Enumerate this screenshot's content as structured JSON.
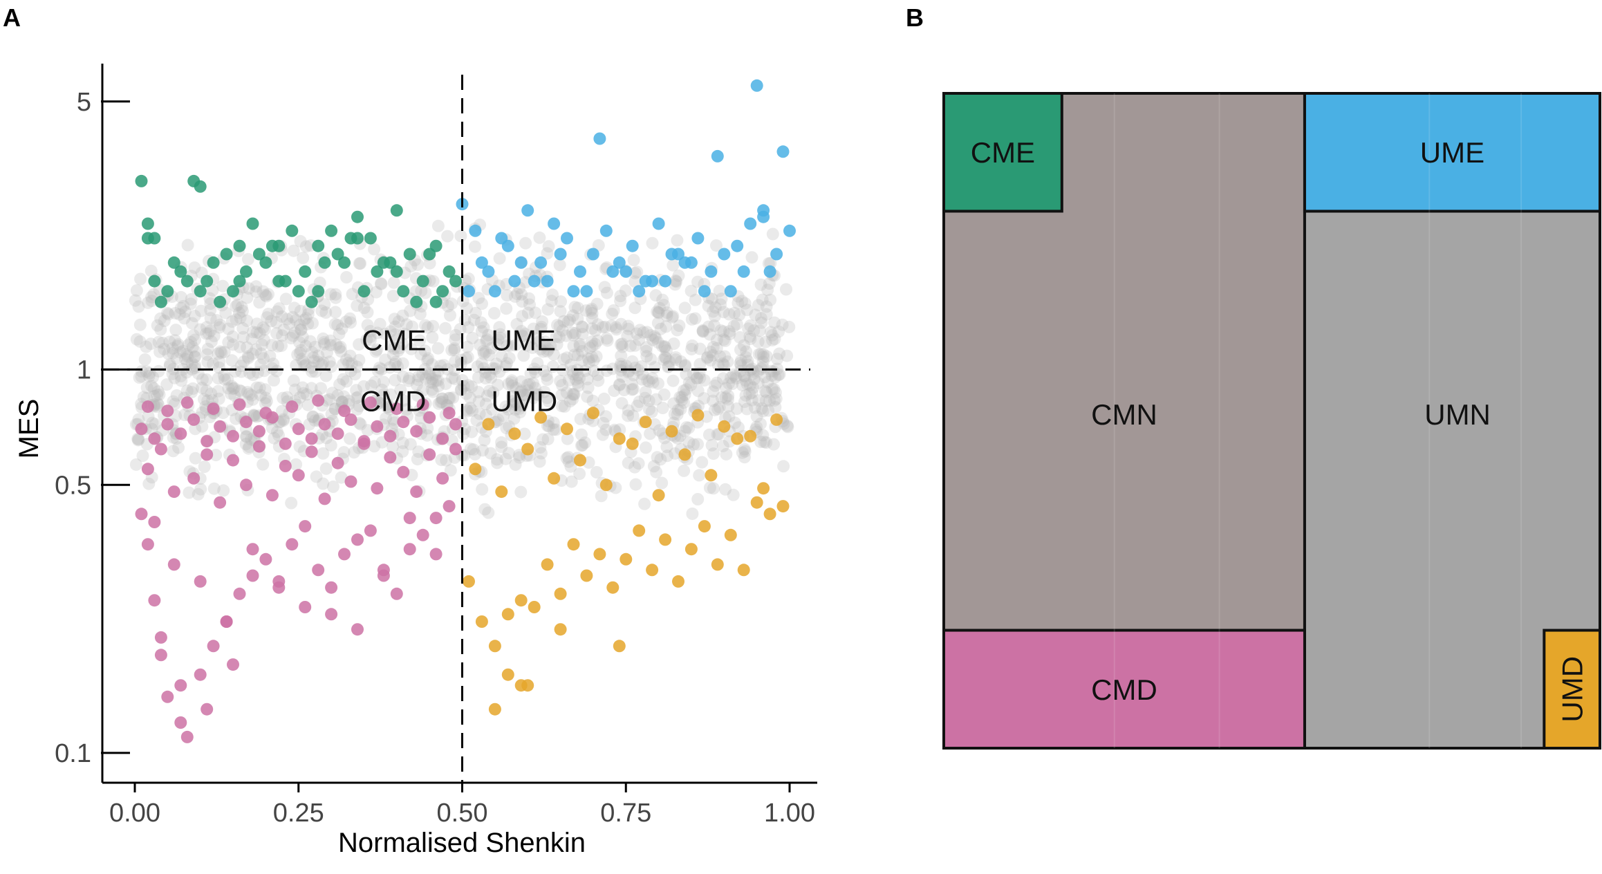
{
  "panels": {
    "a_letter": "A",
    "b_letter": "B"
  },
  "colors": {
    "CME": "#2a9a74",
    "UME": "#4ab0e4",
    "CMD": "#cc72a4",
    "UMD": "#e5a62a",
    "neutral": "#b4b4b4",
    "CMN_block": "#a29796",
    "UMN_block": "#a5a5a5"
  },
  "chart_data": [
    {
      "type": "scatter",
      "panel": "A",
      "title": "",
      "xlabel": "Normalised Shenkin",
      "ylabel": "MES",
      "xlim": [
        0.0,
        1.0
      ],
      "ylim": [
        0.085,
        6.2
      ],
      "y_scale": "log",
      "x_ticks": [
        "0.00",
        "0.25",
        "0.50",
        "0.75",
        "1.00"
      ],
      "y_ticks": [
        "0.1",
        "0.5",
        "1",
        "5"
      ],
      "thresholds": {
        "x": 0.5,
        "y": 1
      },
      "quadrant_labels": {
        "top_left": "CME",
        "top_right": "UME",
        "bottom_left": "CMD",
        "bottom_right": "UMD"
      },
      "series": [
        {
          "group": "CME",
          "x": [
            0.01,
            0.02,
            0.03,
            0.05,
            0.07,
            0.09,
            0.1,
            0.12,
            0.14,
            0.16,
            0.18,
            0.2,
            0.22,
            0.24,
            0.26,
            0.28,
            0.3,
            0.32,
            0.34,
            0.36,
            0.38,
            0.4,
            0.42,
            0.44,
            0.46,
            0.48,
            0.02,
            0.06,
            0.11,
            0.15,
            0.19,
            0.23,
            0.27,
            0.31,
            0.35,
            0.39,
            0.43,
            0.47,
            0.03,
            0.08,
            0.13,
            0.17,
            0.21,
            0.25,
            0.29,
            0.33,
            0.37,
            0.41,
            0.45,
            0.49,
            0.04,
            0.1,
            0.16,
            0.22,
            0.28,
            0.34,
            0.4,
            0.46
          ],
          "y": [
            3.1,
            2.2,
            1.7,
            1.6,
            1.8,
            3.1,
            3.0,
            1.9,
            2.0,
            1.7,
            2.4,
            1.9,
            2.1,
            2.3,
            1.8,
            2.1,
            2.3,
            1.9,
            2.5,
            2.2,
            1.9,
            2.6,
            2.0,
            1.7,
            2.1,
            1.8,
            2.4,
            1.9,
            1.7,
            1.6,
            2.0,
            1.7,
            1.5,
            2.0,
            1.6,
            1.9,
            1.5,
            1.6,
            2.2,
            1.7,
            1.5,
            1.8,
            2.1,
            1.6,
            1.9,
            2.2,
            1.8,
            1.6,
            2.0,
            1.7,
            1.5,
            1.6,
            2.1,
            1.7,
            1.6,
            2.2,
            1.8,
            1.5
          ]
        },
        {
          "group": "UME",
          "x": [
            0.5,
            0.52,
            0.54,
            0.57,
            0.6,
            0.62,
            0.64,
            0.66,
            0.68,
            0.7,
            0.72,
            0.74,
            0.76,
            0.78,
            0.8,
            0.82,
            0.84,
            0.86,
            0.88,
            0.9,
            0.92,
            0.94,
            0.96,
            0.98,
            1.0,
            0.95,
            0.89,
            0.71,
            0.99,
            0.55,
            0.59,
            0.63,
            0.67,
            0.73,
            0.77,
            0.81,
            0.85,
            0.91,
            0.97,
            0.53,
            0.58,
            0.65,
            0.69,
            0.75,
            0.79,
            0.83,
            0.87,
            0.93,
            0.96,
            0.51,
            0.56,
            0.61
          ],
          "y": [
            2.7,
            2.3,
            1.8,
            2.1,
            2.6,
            1.9,
            2.4,
            2.2,
            1.8,
            2.0,
            2.3,
            1.9,
            2.1,
            1.7,
            2.4,
            2.0,
            1.9,
            2.2,
            1.8,
            2.0,
            2.1,
            2.4,
            2.6,
            2.0,
            2.3,
            5.5,
            3.6,
            4.0,
            3.7,
            1.6,
            1.9,
            1.7,
            1.6,
            1.8,
            1.6,
            1.7,
            1.9,
            1.6,
            1.8,
            1.9,
            1.7,
            2.0,
            1.6,
            1.8,
            1.7,
            2.0,
            1.6,
            1.8,
            2.5,
            1.6,
            2.2,
            1.7
          ]
        },
        {
          "group": "CMD",
          "x": [
            0.01,
            0.02,
            0.03,
            0.04,
            0.05,
            0.07,
            0.08,
            0.1,
            0.12,
            0.14,
            0.16,
            0.18,
            0.2,
            0.22,
            0.24,
            0.26,
            0.28,
            0.3,
            0.32,
            0.34,
            0.36,
            0.38,
            0.4,
            0.42,
            0.44,
            0.46,
            0.48,
            0.02,
            0.04,
            0.06,
            0.09,
            0.11,
            0.13,
            0.15,
            0.17,
            0.19,
            0.21,
            0.23,
            0.25,
            0.27,
            0.29,
            0.31,
            0.33,
            0.35,
            0.37,
            0.39,
            0.41,
            0.43,
            0.45,
            0.47,
            0.49,
            0.01,
            0.03,
            0.05,
            0.07,
            0.09,
            0.11,
            0.13,
            0.15,
            0.17,
            0.19,
            0.21,
            0.23,
            0.25,
            0.27,
            0.29,
            0.31,
            0.33,
            0.35,
            0.37,
            0.39,
            0.41,
            0.43,
            0.45,
            0.47,
            0.49,
            0.03,
            0.06,
            0.1,
            0.14,
            0.18,
            0.22,
            0.26,
            0.3,
            0.34,
            0.38,
            0.42,
            0.46,
            0.02,
            0.05,
            0.08,
            0.12,
            0.16,
            0.2,
            0.24,
            0.28,
            0.32,
            0.36,
            0.4,
            0.44,
            0.48,
            0.04,
            0.07,
            0.11,
            0.15
          ],
          "y": [
            0.42,
            0.35,
            0.25,
            0.18,
            0.14,
            0.12,
            0.11,
            0.16,
            0.19,
            0.22,
            0.26,
            0.29,
            0.32,
            0.28,
            0.35,
            0.24,
            0.3,
            0.27,
            0.33,
            0.21,
            0.38,
            0.3,
            0.26,
            0.34,
            0.37,
            0.41,
            0.44,
            0.55,
            0.62,
            0.48,
            0.52,
            0.6,
            0.45,
            0.58,
            0.5,
            0.63,
            0.47,
            0.56,
            0.53,
            0.61,
            0.46,
            0.57,
            0.51,
            0.64,
            0.49,
            0.59,
            0.54,
            0.48,
            0.6,
            0.52,
            0.62,
            0.7,
            0.66,
            0.72,
            0.68,
            0.74,
            0.65,
            0.71,
            0.67,
            0.73,
            0.69,
            0.75,
            0.64,
            0.7,
            0.66,
            0.72,
            0.68,
            0.74,
            0.65,
            0.71,
            0.67,
            0.73,
            0.69,
            0.75,
            0.66,
            0.72,
            0.4,
            0.31,
            0.28,
            0.22,
            0.34,
            0.27,
            0.39,
            0.23,
            0.36,
            0.29,
            0.41,
            0.33,
            0.8,
            0.78,
            0.82,
            0.79,
            0.81,
            0.77,
            0.8,
            0.83,
            0.78,
            0.82,
            0.79,
            0.81,
            0.77,
            0.2,
            0.15,
            0.13,
            0.17
          ]
        },
        {
          "group": "UMD",
          "x": [
            0.51,
            0.53,
            0.55,
            0.57,
            0.59,
            0.61,
            0.63,
            0.65,
            0.67,
            0.69,
            0.71,
            0.73,
            0.75,
            0.77,
            0.79,
            0.81,
            0.83,
            0.85,
            0.87,
            0.89,
            0.91,
            0.93,
            0.95,
            0.97,
            0.99,
            0.52,
            0.56,
            0.6,
            0.64,
            0.68,
            0.72,
            0.76,
            0.8,
            0.84,
            0.88,
            0.92,
            0.96,
            0.54,
            0.58,
            0.62,
            0.66,
            0.7,
            0.74,
            0.78,
            0.82,
            0.86,
            0.9,
            0.94,
            0.98,
            0.55,
            0.6,
            0.65,
            0.74,
            0.59,
            0.57
          ],
          "y": [
            0.28,
            0.22,
            0.19,
            0.16,
            0.15,
            0.24,
            0.31,
            0.26,
            0.35,
            0.29,
            0.33,
            0.27,
            0.32,
            0.38,
            0.3,
            0.36,
            0.28,
            0.34,
            0.39,
            0.31,
            0.37,
            0.3,
            0.45,
            0.42,
            0.44,
            0.55,
            0.48,
            0.62,
            0.52,
            0.58,
            0.5,
            0.64,
            0.47,
            0.6,
            0.53,
            0.66,
            0.49,
            0.72,
            0.68,
            0.75,
            0.7,
            0.77,
            0.66,
            0.73,
            0.69,
            0.76,
            0.71,
            0.67,
            0.74,
            0.13,
            0.15,
            0.21,
            0.19,
            0.25,
            0.23
          ]
        }
      ]
    },
    {
      "type": "mosaic",
      "panel": "B",
      "blocks": [
        {
          "name": "CME",
          "label": "CME",
          "x": [
            0.0,
            0.18
          ],
          "y": [
            0.0,
            0.18
          ]
        },
        {
          "name": "UME",
          "label": "UME",
          "x": [
            0.55,
            1.0
          ],
          "y": [
            0.0,
            0.18
          ]
        },
        {
          "name": "CMN",
          "label": "CMN",
          "x": [
            0.0,
            0.55
          ],
          "y": [
            0.0,
            0.82
          ]
        },
        {
          "name": "UMN",
          "label": "UMN",
          "x": [
            0.55,
            1.0
          ],
          "y": [
            0.18,
            1.0
          ]
        },
        {
          "name": "CMD",
          "label": "CMD",
          "x": [
            0.0,
            0.55
          ],
          "y": [
            0.82,
            1.0
          ]
        },
        {
          "name": "UMD",
          "label": "UMD",
          "x": [
            0.915,
            1.0
          ],
          "y": [
            0.82,
            1.0
          ]
        }
      ]
    }
  ]
}
